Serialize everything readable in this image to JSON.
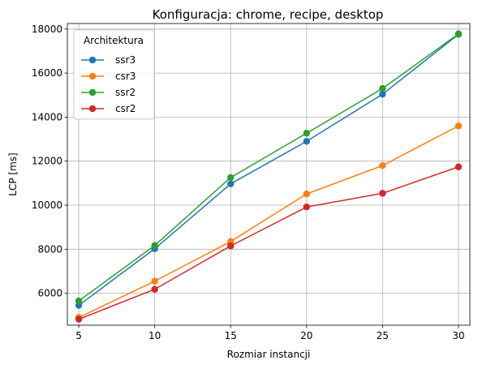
{
  "chart_data": {
    "type": "line",
    "title": "Konfiguracja: chrome, recipe, desktop",
    "xlabel": "Rozmiar instancji",
    "ylabel": "LCP [ms]",
    "x": [
      5,
      10,
      15,
      20,
      25,
      30
    ],
    "xticks": [
      "5",
      "10",
      "15",
      "20",
      "25",
      "30"
    ],
    "yticks": [
      "6000",
      "8000",
      "10000",
      "12000",
      "14000",
      "16000",
      "18000"
    ],
    "xlim": [
      4.25,
      30.75
    ],
    "ylim": [
      4550,
      18250
    ],
    "grid": true,
    "legend": {
      "title": "Architektura",
      "placement": "top-left"
    },
    "series": [
      {
        "name": "ssr3",
        "color": "#1f77b4",
        "values": [
          5450,
          8020,
          10970,
          12900,
          15040,
          17760
        ]
      },
      {
        "name": "csr3",
        "color": "#ff7f0e",
        "values": [
          4900,
          6550,
          8350,
          10510,
          11800,
          13600
        ]
      },
      {
        "name": "ssr2",
        "color": "#2ca02c",
        "values": [
          5650,
          8170,
          11260,
          13270,
          15300,
          17780
        ]
      },
      {
        "name": "csr2",
        "color": "#d62728",
        "values": [
          4820,
          6180,
          8150,
          9920,
          10540,
          11740
        ]
      }
    ]
  }
}
